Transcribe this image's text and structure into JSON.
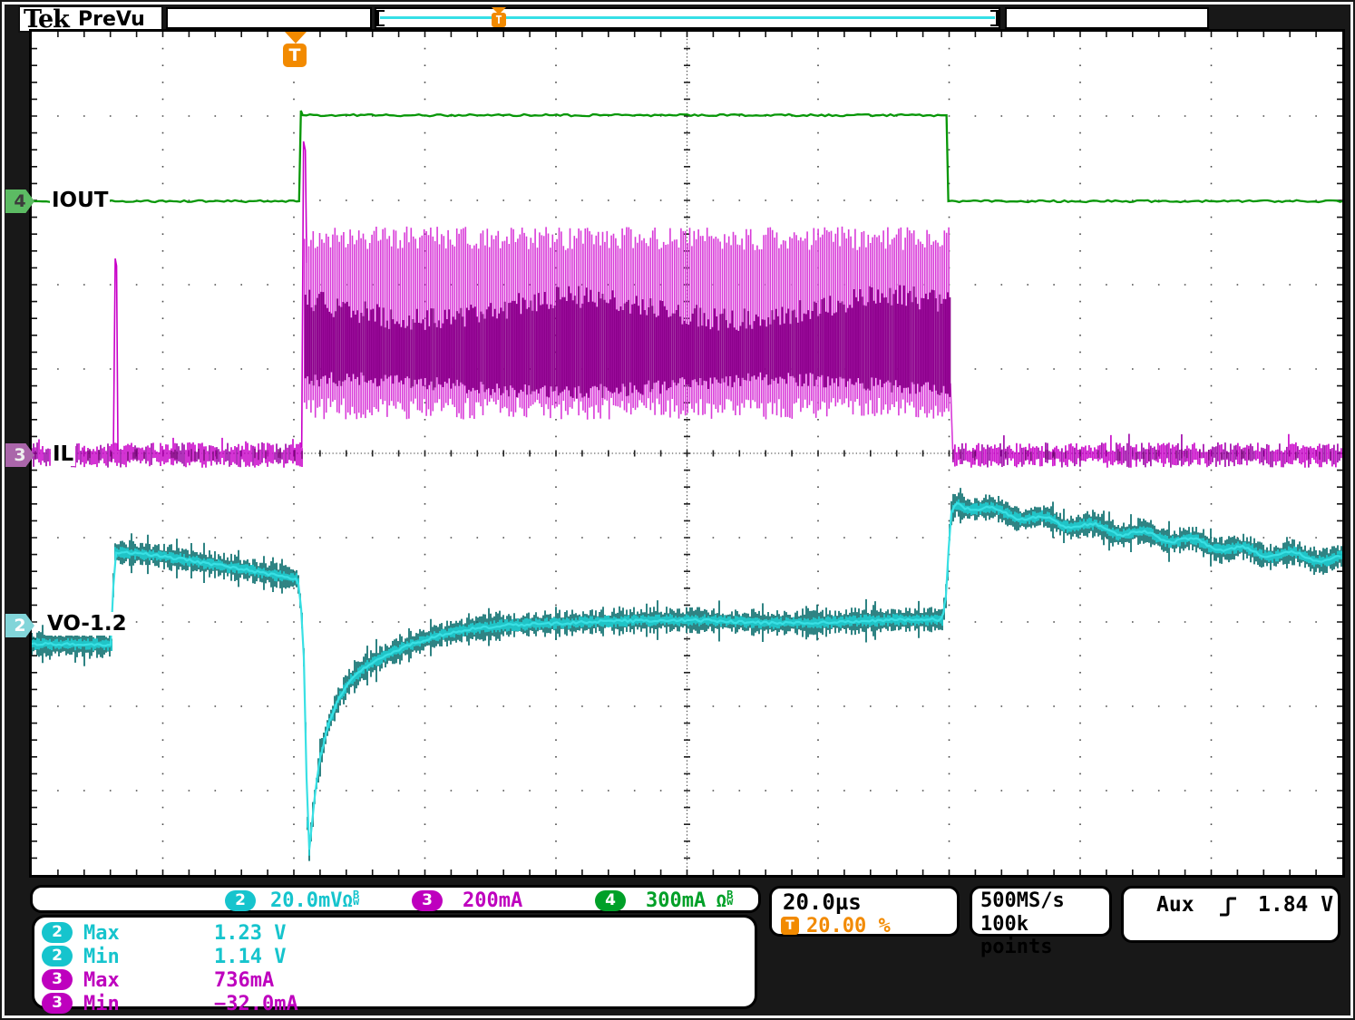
{
  "header": {
    "logo": "Tek",
    "status": "PreVu",
    "record_view": {
      "t_badge": "T"
    }
  },
  "graticule_trigger": {
    "t_badge": "T"
  },
  "trace_labels": {
    "ch4": "IOUT",
    "ch3": "IL",
    "ch2": "VO-1.2"
  },
  "channel_markers": {
    "ch4": "4",
    "ch3": "3",
    "ch2": "2"
  },
  "readouts": {
    "ch2": {
      "badge": "2",
      "scale": "20.0mV",
      "omega": "Ω",
      "bw_b": "B",
      "bw_w": "w"
    },
    "ch3": {
      "badge": "3",
      "scale": "200mA"
    },
    "ch4": {
      "badge": "4",
      "scale": "300mA",
      "omega": " Ω",
      "bw_b": "B",
      "bw_w": "w"
    }
  },
  "horizontal": {
    "timebase": "20.0µs",
    "t_badge": "T",
    "trigger_pct": "20.00 %"
  },
  "acquisition": {
    "rate": "500MS/s",
    "record": "100k points"
  },
  "trigger_readout": {
    "source": "Aux",
    "slope_icon": "rising-edge",
    "level": "1.84 V"
  },
  "measurements": [
    {
      "ch": "2",
      "name": "Max",
      "value": "1.23 V"
    },
    {
      "ch": "2",
      "name": "Min",
      "value": "1.14 V"
    },
    {
      "ch": "3",
      "name": "Max",
      "value": "736mA"
    },
    {
      "ch": "3",
      "name": "Min",
      "value": "−32.0mA"
    }
  ],
  "colors": {
    "ch2": "#16c4cd",
    "ch3": "#be00be",
    "ch4": "#00a028",
    "orange": "#f28a00",
    "trace_ch2": "#15c6ca",
    "trace_ch3": "#cc00cc",
    "trace_ch4": "#089708"
  },
  "chart_data": {
    "type": "line",
    "x_axis": {
      "unit": "time",
      "time_per_div": "20.0µs",
      "divisions": 10,
      "trigger_position_div": 2.0
    },
    "y_axis": {
      "divisions": 10
    },
    "series": [
      {
        "name": "IOUT",
        "channel": 4,
        "scale_per_div": "300mA",
        "pulse": {
          "low_y_div": 2.01,
          "high_y_div": 0.99,
          "rise_x_div": 2.04,
          "fall_x_div": 6.98
        }
      },
      {
        "name": "IL",
        "channel": 3,
        "scale_per_div": "200mA",
        "baseline_y_div": 5.02,
        "baseline_halfwidth_div": 0.12,
        "pre_spike": {
          "x_div": 0.63,
          "top_y_div": 2.69
        },
        "burst": {
          "start_x_div": 2.06,
          "end_x_div": 7.01,
          "env_top_y_div": 2.31,
          "env_bot_y_div": 4.6,
          "core_top_y_div": 3.14,
          "core_bot_y_div": 4.28,
          "lead_spike_top_y_div": 1.3
        }
      },
      {
        "name": "VO-1.2",
        "channel": 2,
        "scale_per_div": "20.0mV",
        "noise_halfwidth_div": 0.08,
        "ripple": {
          "from_x_div": 7.06,
          "period_div": 0.38,
          "amp_div": 0.04
        },
        "centerline_div": [
          [
            0,
            7.26
          ],
          [
            0.3,
            7.25
          ],
          [
            0.61,
            7.26
          ],
          [
            0.63,
            6.16
          ],
          [
            0.9,
            6.2
          ],
          [
            1.38,
            6.33
          ],
          [
            1.73,
            6.41
          ],
          [
            2.03,
            6.48
          ],
          [
            2.06,
            6.9
          ],
          [
            2.08,
            7.53
          ],
          [
            2.09,
            8.3
          ],
          [
            2.1,
            9.1
          ],
          [
            2.11,
            9.83
          ],
          [
            2.13,
            9.5
          ],
          [
            2.16,
            9.05
          ],
          [
            2.2,
            8.6
          ],
          [
            2.26,
            8.22
          ],
          [
            2.33,
            7.94
          ],
          [
            2.42,
            7.7
          ],
          [
            2.55,
            7.52
          ],
          [
            2.7,
            7.4
          ],
          [
            2.87,
            7.29
          ],
          [
            3.08,
            7.18
          ],
          [
            3.32,
            7.1
          ],
          [
            3.6,
            7.04
          ],
          [
            3.9,
            7.01
          ],
          [
            4.3,
            6.99
          ],
          [
            5.0,
            6.99
          ],
          [
            5.7,
            7.0
          ],
          [
            6.5,
            6.99
          ],
          [
            6.95,
            6.98
          ],
          [
            6.985,
            6.6
          ],
          [
            7.0,
            6.0
          ],
          [
            7.02,
            5.67
          ],
          [
            7.06,
            5.6
          ],
          [
            7.2,
            5.63
          ],
          [
            7.35,
            5.68
          ],
          [
            7.5,
            5.72
          ],
          [
            7.7,
            5.77
          ],
          [
            7.9,
            5.83
          ],
          [
            8.1,
            5.88
          ],
          [
            8.3,
            5.94
          ],
          [
            8.55,
            5.99
          ],
          [
            8.8,
            6.04
          ],
          [
            9.0,
            6.09
          ],
          [
            9.2,
            6.13
          ],
          [
            9.4,
            6.17
          ],
          [
            9.65,
            6.21
          ],
          [
            9.85,
            6.25
          ],
          [
            10,
            6.27
          ]
        ]
      }
    ]
  }
}
